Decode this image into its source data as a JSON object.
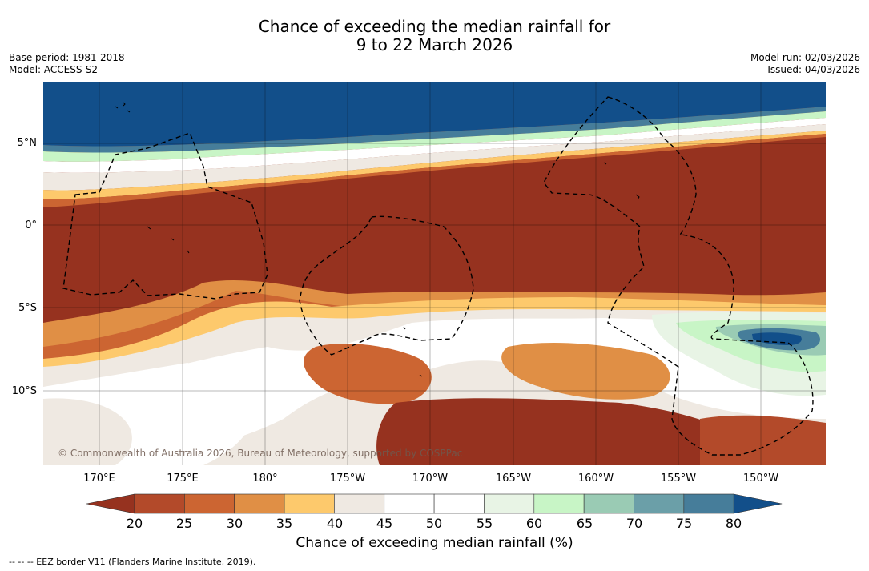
{
  "title": {
    "line1": "Chance of exceeding the median rainfall for",
    "line2": "9 to 22 March 2026"
  },
  "meta_left": {
    "base_period": "Base period: 1981-2018",
    "model": "Model: ACCESS-S2"
  },
  "meta_right": {
    "model_run": "Model run: 02/03/2026",
    "issued": "Issued: 04/03/2026"
  },
  "map": {
    "lat_ticks": [
      "5°N",
      "0°",
      "5°S",
      "10°S"
    ],
    "lon_ticks": [
      "170°E",
      "175°E",
      "180°",
      "175°W",
      "170°W",
      "165°W",
      "160°W",
      "155°W",
      "150°W"
    ],
    "copyright": "© Commonwealth of Australia 2026, Bureau of Meteorology, supported by COSPPac",
    "colors": {
      "dry_strong": "#96321f",
      "wet_strong": "#124f8a",
      "neutral": "#efe9e2"
    }
  },
  "colorbar": {
    "labels": [
      "20",
      "25",
      "30",
      "35",
      "40",
      "45",
      "50",
      "55",
      "60",
      "65",
      "70",
      "75",
      "80"
    ],
    "colors": [
      "#96321f",
      "#b34a2a",
      "#cc6532",
      "#e08f45",
      "#fdc96c",
      "#efe9e2",
      "#ffffff",
      "#ffffff",
      "#e8f4e5",
      "#c8f5c6",
      "#9acbb4",
      "#6b9fa8",
      "#467d9a",
      "#124f8a"
    ],
    "title": "Chance of exceeding median rainfall (%)"
  },
  "footnote": "--  --  -- EEZ border V11 (Flanders Marine Institute, 2019)."
}
